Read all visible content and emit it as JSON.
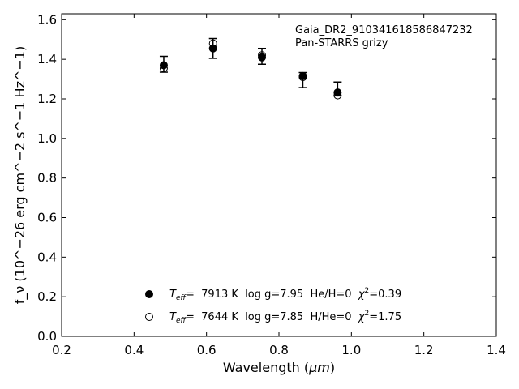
{
  "chart_data": {
    "type": "scatter",
    "xlabel_main": "Wavelength (",
    "xlabel_unit": "μm",
    "xlabel_close": ")",
    "ylabel": "f_ν (10^−26 erg cm^−2 s^−1 Hz^−1)",
    "xlim": [
      0.2,
      1.4
    ],
    "ylim": [
      0.0,
      1.63
    ],
    "x_ticks": [
      "0.2",
      "0.4",
      "0.6",
      "0.8",
      "1.0",
      "1.2",
      "1.4"
    ],
    "y_ticks": [
      "0.0",
      "0.2",
      "0.4",
      "0.6",
      "0.8",
      "1.0",
      "1.2",
      "1.4",
      "1.6"
    ],
    "annotations": [
      "Gaia_DR2_910341618586847232",
      "Pan-STARRS grizy"
    ],
    "observed": {
      "x": [
        0.482,
        0.618,
        0.753,
        0.866,
        0.962
      ],
      "y": [
        1.375,
        1.455,
        1.415,
        1.295,
        1.25
      ],
      "yerr": [
        0.04,
        0.05,
        0.04,
        0.038,
        0.035
      ]
    },
    "series": [
      {
        "name": "T_eff= 7913 K log g=7.95 He/H=0 χ²=0.39",
        "marker": "filled",
        "x": [
          0.482,
          0.618,
          0.753,
          0.866,
          0.962
        ],
        "y": [
          1.37,
          1.455,
          1.41,
          1.315,
          1.232
        ]
      },
      {
        "name": "T_eff= 7644 K log g=7.85 H/He=0 χ²=1.75",
        "marker": "open",
        "x": [
          0.482,
          0.618,
          0.753,
          0.866,
          0.962
        ],
        "y": [
          1.355,
          1.48,
          1.42,
          1.31,
          1.218
        ]
      }
    ],
    "legend": {
      "placement": "lower-center",
      "entries": [
        {
          "teff_label": "T",
          "teff_sub": "eff",
          "text": "=  7913 K  log g=7.95  He/H=0  ",
          "chi": "χ",
          "chi_sup": "2",
          "chi_val": "=0.39"
        },
        {
          "teff_label": "T",
          "teff_sub": "eff",
          "text": "=  7644 K  log g=7.85  H/He=0  ",
          "chi": "χ",
          "chi_sup": "2",
          "chi_val": "=1.75"
        }
      ]
    },
    "colors": {
      "marker": "#000000",
      "axes": "#000000"
    },
    "grid": false
  }
}
